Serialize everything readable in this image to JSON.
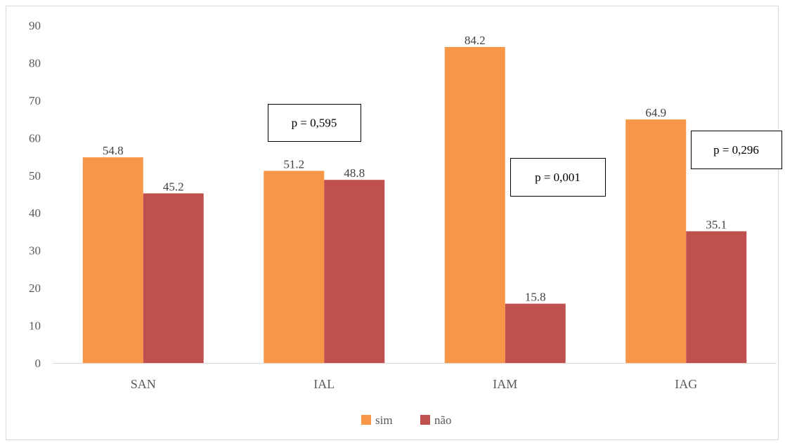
{
  "chart_data": {
    "type": "bar",
    "categories": [
      "SAN",
      "IAL",
      "IAM",
      "IAG"
    ],
    "series": [
      {
        "name": "sim",
        "values": [
          54.8,
          51.2,
          84.2,
          64.9
        ],
        "color": "#F79646"
      },
      {
        "name": "não",
        "values": [
          45.2,
          48.8,
          15.8,
          35.1
        ],
        "color": "#C0504D"
      }
    ],
    "data_labels": [
      [
        "54.8",
        "45.2"
      ],
      [
        "51.2",
        "48.8"
      ],
      [
        "84.2",
        "15.8"
      ],
      [
        "64.9",
        "35.1"
      ]
    ],
    "y_ticks": [
      "0",
      "10",
      "20",
      "30",
      "40",
      "50",
      "60",
      "70",
      "80",
      "90"
    ],
    "ylim": [
      0,
      90
    ],
    "grid": false,
    "legend_position": "bottom",
    "annotations": [
      {
        "text": "p = 0,595",
        "category": "IAL"
      },
      {
        "text": "p = 0,001",
        "category": "IAM"
      },
      {
        "text": "p = 0,296",
        "category": "IAG"
      }
    ],
    "title": "",
    "xlabel": "",
    "ylabel": ""
  }
}
